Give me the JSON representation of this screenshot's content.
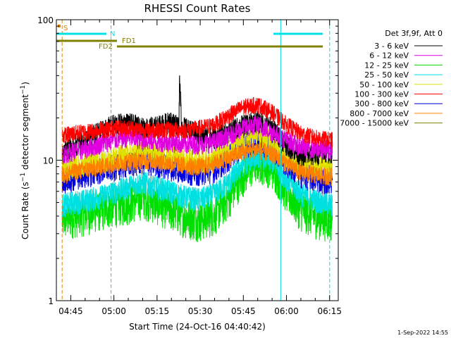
{
  "chart_data": {
    "type": "line",
    "title": "RHESSI Count Rates",
    "xlabel": "Start Time (24-Oct-16 04:40:42)",
    "ylabel": "Count Rate (s⁻¹ detector segment⁻¹)",
    "ylabel_parts": [
      "Count Rate (s",
      "−1",
      " detector segment",
      "−1",
      ")"
    ],
    "y_scale": "log",
    "ylim": [
      1,
      100
    ],
    "y_ticks": [
      "1",
      "10",
      "100"
    ],
    "x_range_minutes": [
      "04:40",
      "06:18"
    ],
    "x_ticks": [
      "04:45",
      "05:00",
      "05:15",
      "05:30",
      "05:45",
      "06:00",
      "06:15"
    ],
    "legend_header": "Det 3f,9f, Att 0",
    "legend_position": "right",
    "series": [
      {
        "name": "3 - 6 keV",
        "color": "#000000",
        "x": [
          "04:42",
          "04:45",
          "04:50",
          "04:55",
          "05:00",
          "05:05",
          "05:10",
          "05:15",
          "05:20",
          "05:25",
          "05:30",
          "05:35",
          "05:40",
          "05:45",
          "05:50",
          "05:55",
          "06:00",
          "06:05",
          "06:10",
          "06:15"
        ],
        "values": [
          11.5,
          12.5,
          14,
          16,
          18,
          18.5,
          17,
          17.5,
          19,
          17,
          15,
          14.5,
          16,
          18,
          19,
          17,
          13,
          11,
          11,
          11.5
        ]
      },
      {
        "name": "6 - 12 keV",
        "color": "#e000e0",
        "x": [
          "04:42",
          "04:45",
          "04:50",
          "04:55",
          "05:00",
          "05:05",
          "05:10",
          "05:15",
          "05:20",
          "05:25",
          "05:30",
          "05:35",
          "05:40",
          "05:45",
          "05:50",
          "05:55",
          "06:00",
          "06:05",
          "06:10",
          "06:15"
        ],
        "values": [
          11,
          11.5,
          12,
          13,
          14,
          14.5,
          14,
          13.5,
          13.5,
          13,
          13,
          13.5,
          15,
          17,
          18,
          16,
          14,
          12.5,
          12,
          12
        ]
      },
      {
        "name": "12 - 25 keV",
        "color": "#00e000",
        "x": [
          "04:42",
          "04:45",
          "04:50",
          "04:55",
          "05:00",
          "05:05",
          "05:10",
          "05:15",
          "05:20",
          "05:25",
          "05:30",
          "05:35",
          "05:40",
          "05:45",
          "05:50",
          "05:55",
          "06:00",
          "06:05",
          "06:10",
          "06:15"
        ],
        "values": [
          3.8,
          4,
          4.2,
          4.5,
          4.8,
          5,
          5.5,
          5,
          4.5,
          4,
          3.8,
          4.2,
          5.5,
          8,
          10,
          9,
          6,
          4.5,
          4,
          3.8
        ]
      },
      {
        "name": "25 - 50 keV",
        "color": "#00e0e0",
        "x": [
          "04:42",
          "04:45",
          "04:50",
          "04:55",
          "05:00",
          "05:05",
          "05:10",
          "05:15",
          "05:20",
          "05:25",
          "05:30",
          "05:35",
          "05:40",
          "05:45",
          "05:50",
          "05:55",
          "06:00",
          "06:05",
          "06:10",
          "06:15"
        ],
        "values": [
          4.8,
          5,
          5.2,
          5.5,
          6,
          6.5,
          7,
          6.5,
          6,
          5.5,
          5.3,
          5.8,
          7,
          9.5,
          11,
          10,
          7.5,
          5.8,
          5.2,
          4.9
        ]
      },
      {
        "name": "50 - 100 keV",
        "color": "#e0e000",
        "x": [
          "04:42",
          "04:45",
          "04:50",
          "04:55",
          "05:00",
          "05:05",
          "05:10",
          "05:15",
          "05:20",
          "05:25",
          "05:30",
          "05:35",
          "05:40",
          "05:45",
          "05:50",
          "05:55",
          "06:00",
          "06:05",
          "06:10",
          "06:15"
        ],
        "values": [
          8.5,
          9,
          9.5,
          10,
          10.5,
          11,
          11.5,
          11,
          10.5,
          10,
          9.8,
          10.5,
          12,
          14,
          15,
          13.5,
          11,
          9.5,
          9,
          9
        ]
      },
      {
        "name": "100 - 300 keV",
        "color": "#ff0000",
        "x": [
          "04:42",
          "04:45",
          "04:50",
          "04:55",
          "05:00",
          "05:05",
          "05:10",
          "05:15",
          "05:20",
          "05:25",
          "05:30",
          "05:35",
          "05:40",
          "05:45",
          "05:50",
          "05:55",
          "06:00",
          "06:05",
          "06:10",
          "06:15"
        ],
        "values": [
          15,
          15.5,
          16,
          16.5,
          17,
          17,
          16.5,
          16.5,
          16.5,
          16.5,
          17,
          18,
          21,
          24,
          25,
          22,
          18,
          15.5,
          14.5,
          14
        ]
      },
      {
        "name": "300 - 800 keV",
        "color": "#0000e0",
        "x": [
          "04:42",
          "04:45",
          "04:50",
          "04:55",
          "05:00",
          "05:05",
          "05:10",
          "05:15",
          "05:20",
          "05:25",
          "05:30",
          "05:35",
          "05:40",
          "05:45",
          "05:50",
          "05:55",
          "06:00",
          "06:05",
          "06:10",
          "06:15"
        ],
        "values": [
          7,
          7.5,
          8,
          8.5,
          9,
          9.5,
          10,
          9.5,
          9,
          8.5,
          8.3,
          8.8,
          10.5,
          13,
          14,
          12.5,
          9.5,
          8,
          7.5,
          7.2
        ]
      },
      {
        "name": "800 - 7000 keV",
        "color": "#ff8000",
        "x": [
          "04:42",
          "04:45",
          "04:50",
          "04:55",
          "05:00",
          "05:05",
          "05:10",
          "05:15",
          "05:20",
          "05:25",
          "05:30",
          "05:35",
          "05:40",
          "05:45",
          "05:50",
          "05:55",
          "06:00",
          "06:05",
          "06:10",
          "06:15"
        ],
        "values": [
          7.8,
          8.2,
          8.6,
          9,
          9.5,
          9.8,
          10,
          9.8,
          9.5,
          9.2,
          9,
          9.5,
          10.5,
          11.5,
          12,
          11,
          9.5,
          8.3,
          7.9,
          7.7
        ]
      },
      {
        "name": "7000 - 15000 keV",
        "color": "#808000",
        "x": [
          "04:42",
          "04:45",
          "04:50",
          "04:55",
          "05:00",
          "05:05",
          "05:10",
          "05:15",
          "05:20",
          "05:25",
          "05:30",
          "05:35",
          "05:40",
          "05:45",
          "05:50",
          "05:55",
          "06:00",
          "06:05",
          "06:10",
          "06:15"
        ],
        "values": [
          null,
          null,
          null,
          null,
          null,
          null,
          null,
          null,
          null,
          null,
          null,
          null,
          null,
          null,
          null,
          null,
          null,
          null,
          null,
          null
        ]
      }
    ],
    "spike": {
      "x": "05:23",
      "value": 40
    },
    "flags": {
      "S": {
        "label": "S",
        "color": "#e08000"
      },
      "N": {
        "label": "N",
        "color": "#00e0e0"
      },
      "FD1": {
        "label": "FD1",
        "color": "#808000"
      },
      "FD2": {
        "label": "FD2",
        "color": "#808000"
      }
    },
    "vertical_markers": [
      {
        "x": "04:40",
        "style": "solid",
        "color": "#00e0e0"
      },
      {
        "x": "04:42",
        "style": "dashed",
        "color": "#e08000"
      },
      {
        "x": "04:59",
        "style": "dashed",
        "color": "#00e0e0"
      },
      {
        "x": "05:58",
        "style": "solid",
        "color": "#00e0e0"
      },
      {
        "x": "06:15",
        "style": "dashed",
        "color": "#00e0e0"
      }
    ],
    "grid": false
  },
  "footer_date": "1-Sep-2022 14:55"
}
